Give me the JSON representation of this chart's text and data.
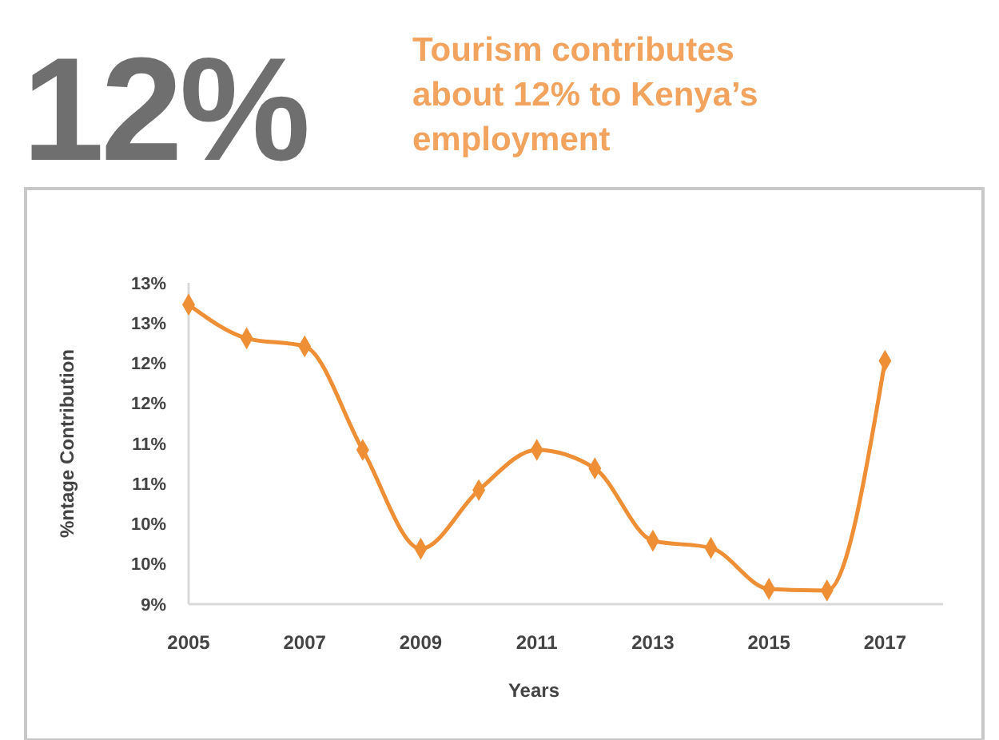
{
  "chart_data": {
    "type": "line",
    "title": "12%",
    "subtitle": "Tourism contributes about 12% to Kenya’s employment",
    "xlabel": "Years",
    "ylabel": "%ntage Contribution",
    "x": [
      2005,
      2006,
      2007,
      2008,
      2009,
      2010,
      2011,
      2012,
      2013,
      2014,
      2015,
      2016,
      2017
    ],
    "series": [
      {
        "color": "#ee8f35",
        "values": [
          12.73,
          12.31,
          12.21,
          10.92,
          9.69,
          10.42,
          10.92,
          10.69,
          9.79,
          9.7,
          9.19,
          9.17,
          12.03
        ]
      }
    ],
    "xlim": [
      2005,
      2018
    ],
    "xticks": [
      2005,
      2007,
      2009,
      2011,
      2013,
      2015,
      2017
    ],
    "ylim": [
      9,
      13
    ],
    "yticks": [
      {
        "value": 9,
        "label": "9%"
      },
      {
        "value": 9.5,
        "label": "10%"
      },
      {
        "value": 10,
        "label": "10%"
      },
      {
        "value": 10.5,
        "label": "11%"
      },
      {
        "value": 11,
        "label": "11%"
      },
      {
        "value": 11.5,
        "label": "12%"
      },
      {
        "value": 12,
        "label": "12%"
      },
      {
        "value": 12.5,
        "label": "13%"
      },
      {
        "value": 13,
        "label": "13%"
      }
    ],
    "grid": false,
    "marker": "diamond",
    "line_style": "solid"
  }
}
